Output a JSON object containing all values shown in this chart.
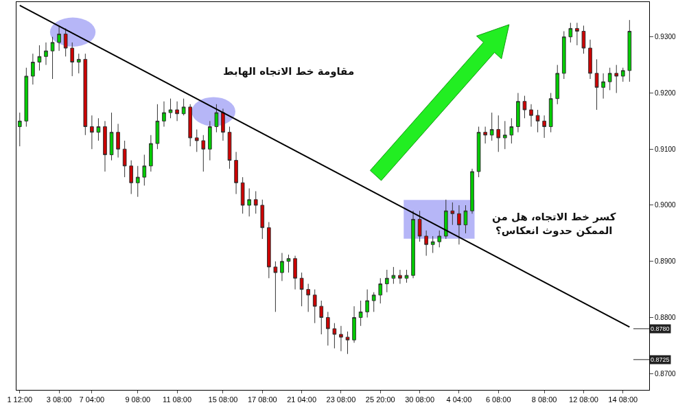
{
  "chart_data": {
    "type": "candlestick",
    "categories": [
      "1 12:00",
      null,
      null,
      null,
      null,
      null,
      "3 08:00",
      null,
      null,
      null,
      null,
      "7 04:00",
      null,
      null,
      null,
      null,
      null,
      null,
      "9 08:00",
      null,
      null,
      null,
      null,
      null,
      "11 08:00",
      null,
      null,
      null,
      null,
      null,
      null,
      "15 08:00",
      null,
      null,
      null,
      null,
      null,
      "17 08:00",
      null,
      null,
      null,
      null,
      null,
      "21 04:00",
      null,
      null,
      null,
      null,
      null,
      "23 08:00",
      null,
      null,
      null,
      null,
      null,
      "25 20:00",
      null,
      null,
      null,
      null,
      null,
      "30 08:00",
      null,
      null,
      null,
      null,
      null,
      "4 04:00",
      null,
      null,
      null,
      null,
      null,
      "6 08:00",
      null,
      null,
      null,
      null,
      null,
      null,
      "8 08:00",
      null,
      null,
      null,
      null,
      null,
      "12 08:00",
      null,
      null,
      null,
      null,
      null,
      "14 08:00",
      null
    ],
    "colors": [
      "#00cc00",
      "#00cc00",
      "#00cc00",
      "#00cc00",
      "#00cc00",
      "#00cc00",
      "#00cc00",
      "#cc0000",
      "#cc0000",
      "#00cc00",
      "#cc0000",
      "#cc0000",
      "#00cc00",
      "#cc0000",
      "#00cc00",
      "#cc0000",
      "#cc0000",
      "#cc0000",
      "#00cc00",
      "#00cc00",
      "#00cc00",
      "#00cc00",
      "#00cc00",
      "#00cc00",
      "#cc0000",
      "#00cc00",
      "#cc0000",
      "#cc0000",
      "#cc0000",
      "#00cc00",
      "#00cc00",
      "#cc0000",
      "#cc0000",
      "#cc0000",
      "#cc0000",
      "#00cc00",
      "#cc0000",
      "#cc0000",
      "#cc0000",
      "#cc0000",
      "#00cc00",
      "#00cc00",
      "#cc0000",
      "#cc0000",
      "#cc0000",
      "#cc0000",
      "#cc0000",
      "#cc0000",
      "#cc0000",
      "#cc0000",
      "#cc0000",
      "#00cc00",
      "#00cc00",
      "#00cc00",
      "#00cc00",
      "#00cc00",
      "#00cc00",
      "#00cc00",
      "#cc0000",
      "#00cc00",
      "#00cc00",
      "#cc0000",
      "#cc0000",
      "#00cc00",
      "#00cc00",
      "#00cc00",
      "#cc0000",
      "#cc0000",
      "#00cc00",
      "#00cc00",
      "#00cc00",
      "#cc0000",
      "#00cc00",
      "#cc0000",
      "#00cc00",
      "#00cc00",
      "#00cc00",
      "#cc0000",
      "#cc0000",
      "#cc0000",
      "#cc0000",
      "#00cc00",
      "#00cc00",
      "#00cc00",
      "#00cc00",
      "#cc0000",
      "#cc0000",
      "#cc0000",
      "#cc0000",
      "#00cc00",
      "#00cc00",
      "#cc0000",
      "#00cc00",
      "#00cc00"
    ],
    "ohlc": [
      [
        0.914,
        0.9165,
        0.9105,
        0.915
      ],
      [
        0.915,
        0.9245,
        0.914,
        0.923
      ],
      [
        0.923,
        0.927,
        0.9215,
        0.9255
      ],
      [
        0.9255,
        0.9285,
        0.924,
        0.9265
      ],
      [
        0.9265,
        0.929,
        0.925,
        0.9275
      ],
      [
        0.9275,
        0.93,
        0.9225,
        0.929
      ],
      [
        0.929,
        0.932,
        0.9275,
        0.9305
      ],
      [
        0.9305,
        0.9315,
        0.9265,
        0.928
      ],
      [
        0.928,
        0.929,
        0.923,
        0.9255
      ],
      [
        0.9255,
        0.927,
        0.9235,
        0.926
      ],
      [
        0.926,
        0.927,
        0.9125,
        0.914
      ],
      [
        0.914,
        0.916,
        0.91,
        0.913
      ],
      [
        0.913,
        0.9155,
        0.9115,
        0.914
      ],
      [
        0.914,
        0.915,
        0.906,
        0.909
      ],
      [
        0.909,
        0.9165,
        0.908,
        0.913
      ],
      [
        0.913,
        0.9145,
        0.9085,
        0.91
      ],
      [
        0.91,
        0.9115,
        0.905,
        0.907
      ],
      [
        0.907,
        0.908,
        0.902,
        0.904
      ],
      [
        0.904,
        0.907,
        0.9015,
        0.905
      ],
      [
        0.905,
        0.909,
        0.9035,
        0.907
      ],
      [
        0.907,
        0.9125,
        0.906,
        0.911
      ],
      [
        0.911,
        0.918,
        0.91,
        0.915
      ],
      [
        0.915,
        0.9185,
        0.914,
        0.9165
      ],
      [
        0.9165,
        0.919,
        0.9155,
        0.917
      ],
      [
        0.917,
        0.9185,
        0.915,
        0.9163
      ],
      [
        0.9163,
        0.919,
        0.916,
        0.9175
      ],
      [
        0.9175,
        0.918,
        0.9105,
        0.912
      ],
      [
        0.912,
        0.9135,
        0.9095,
        0.9115
      ],
      [
        0.9115,
        0.9125,
        0.906,
        0.91
      ],
      [
        0.91,
        0.915,
        0.908,
        0.914
      ],
      [
        0.914,
        0.918,
        0.913,
        0.9165
      ],
      [
        0.9165,
        0.9172,
        0.9115,
        0.913
      ],
      [
        0.913,
        0.914,
        0.9065,
        0.908
      ],
      [
        0.908,
        0.9095,
        0.902,
        0.904
      ],
      [
        0.904,
        0.905,
        0.8985,
        0.9
      ],
      [
        0.9,
        0.903,
        0.898,
        0.901
      ],
      [
        0.901,
        0.9025,
        0.8985,
        0.9
      ],
      [
        0.9,
        0.901,
        0.894,
        0.896
      ],
      [
        0.896,
        0.897,
        0.887,
        0.889
      ],
      [
        0.889,
        0.89,
        0.881,
        0.888
      ],
      [
        0.888,
        0.8915,
        0.8865,
        0.89
      ],
      [
        0.89,
        0.8912,
        0.888,
        0.8905
      ],
      [
        0.8905,
        0.891,
        0.885,
        0.887
      ],
      [
        0.887,
        0.888,
        0.882,
        0.885
      ],
      [
        0.885,
        0.886,
        0.881,
        0.884
      ],
      [
        0.884,
        0.885,
        0.879,
        0.882
      ],
      [
        0.882,
        0.883,
        0.877,
        0.88
      ],
      [
        0.88,
        0.881,
        0.875,
        0.878
      ],
      [
        0.878,
        0.879,
        0.8745,
        0.877
      ],
      [
        0.877,
        0.8785,
        0.874,
        0.8765
      ],
      [
        0.8765,
        0.8775,
        0.8735,
        0.876
      ],
      [
        0.876,
        0.882,
        0.8755,
        0.88
      ],
      [
        0.88,
        0.883,
        0.8785,
        0.881
      ],
      [
        0.881,
        0.885,
        0.88,
        0.883
      ],
      [
        0.883,
        0.8845,
        0.881,
        0.884
      ],
      [
        0.884,
        0.887,
        0.8825,
        0.886
      ],
      [
        0.886,
        0.8885,
        0.8845,
        0.887
      ],
      [
        0.887,
        0.889,
        0.886,
        0.8875
      ],
      [
        0.8875,
        0.8885,
        0.886,
        0.887
      ],
      [
        0.887,
        0.8885,
        0.8862,
        0.8875
      ],
      [
        0.8875,
        0.899,
        0.887,
        0.8975
      ],
      [
        0.8975,
        0.899,
        0.8935,
        0.8945
      ],
      [
        0.8945,
        0.8955,
        0.891,
        0.893
      ],
      [
        0.893,
        0.8945,
        0.8915,
        0.8935
      ],
      [
        0.8935,
        0.8955,
        0.8925,
        0.8945
      ],
      [
        0.8945,
        0.901,
        0.894,
        0.899
      ],
      [
        0.899,
        0.9005,
        0.8965,
        0.8985
      ],
      [
        0.8985,
        0.9,
        0.893,
        0.8965
      ],
      [
        0.8965,
        0.9,
        0.895,
        0.899
      ],
      [
        0.899,
        0.9065,
        0.8985,
        0.906
      ],
      [
        0.906,
        0.914,
        0.905,
        0.913
      ],
      [
        0.913,
        0.914,
        0.911,
        0.9125
      ],
      [
        0.9125,
        0.9165,
        0.9115,
        0.9135
      ],
      [
        0.9135,
        0.916,
        0.9095,
        0.912
      ],
      [
        0.912,
        0.915,
        0.91,
        0.9125
      ],
      [
        0.9125,
        0.9155,
        0.911,
        0.914
      ],
      [
        0.914,
        0.92,
        0.913,
        0.9185
      ],
      [
        0.9185,
        0.9195,
        0.9155,
        0.917
      ],
      [
        0.917,
        0.918,
        0.914,
        0.916
      ],
      [
        0.916,
        0.917,
        0.913,
        0.915
      ],
      [
        0.915,
        0.916,
        0.912,
        0.914
      ],
      [
        0.914,
        0.92,
        0.913,
        0.919
      ],
      [
        0.919,
        0.925,
        0.918,
        0.9235
      ],
      [
        0.9235,
        0.931,
        0.9225,
        0.93
      ],
      [
        0.93,
        0.9325,
        0.929,
        0.9315
      ],
      [
        0.9315,
        0.9325,
        0.9285,
        0.931
      ],
      [
        0.931,
        0.932,
        0.927,
        0.928
      ],
      [
        0.928,
        0.9295,
        0.9225,
        0.9235
      ],
      [
        0.9235,
        0.926,
        0.917,
        0.921
      ],
      [
        0.921,
        0.9235,
        0.919,
        0.922
      ],
      [
        0.922,
        0.9245,
        0.9205,
        0.9235
      ],
      [
        0.9235,
        0.925,
        0.92,
        0.923
      ],
      [
        0.923,
        0.9245,
        0.922,
        0.924
      ],
      [
        0.924,
        0.933,
        0.922,
        0.931
      ]
    ],
    "series": [
      {
        "type": "line",
        "values": [
          0.9356,
          null,
          null,
          null,
          null,
          null,
          null,
          null,
          null,
          null,
          null,
          null,
          null,
          null,
          null,
          null,
          null,
          null,
          null,
          null,
          null,
          null,
          null,
          null,
          null,
          null,
          null,
          null,
          null,
          null,
          null,
          null,
          null,
          null,
          null,
          null,
          null,
          null,
          null,
          null,
          null,
          null,
          null,
          null,
          null,
          null,
          null,
          null,
          null,
          null,
          null,
          null,
          null,
          null,
          null,
          null,
          null,
          null,
          null,
          null,
          null,
          null,
          null,
          null,
          null,
          null,
          null,
          null,
          null,
          null,
          null,
          null,
          null,
          null,
          null,
          null,
          null,
          null,
          null,
          null,
          null,
          null,
          null,
          null,
          null,
          null,
          null,
          null,
          null,
          null,
          null,
          null,
          null,
          0.8783
        ],
        "color": "#000000"
      }
    ],
    "ylim": [
      0.8671,
      0.9362
    ],
    "yticks": [
      {
        "value": 0.87,
        "label": "0.8700"
      },
      {
        "value": 0.88,
        "label": "0.8800"
      },
      {
        "value": 0.89,
        "label": "0.8900"
      },
      {
        "value": 0.9,
        "label": "0.9000"
      },
      {
        "value": 0.91,
        "label": "0.9100"
      },
      {
        "value": 0.92,
        "label": "0.9200"
      },
      {
        "value": 0.93,
        "label": "0.9300"
      }
    ],
    "ref_lines": [
      {
        "axis": "y",
        "value": 0.878,
        "label": "0.8780"
      },
      {
        "axis": "y",
        "value": 0.8725,
        "label": "0.8725"
      }
    ],
    "annotations": [
      "مقاومة خط الاتجاه الهابط",
      "كسر خط الاتجاه، هل من الممكن حدوث انعكاس؟"
    ],
    "grid": false,
    "marker": "none"
  }
}
